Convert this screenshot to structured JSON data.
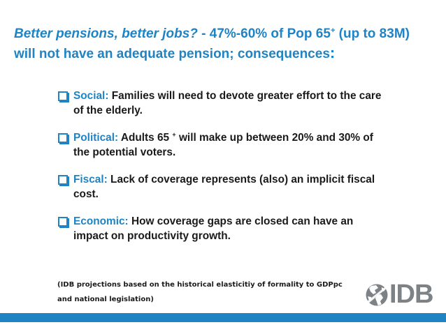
{
  "title": {
    "question": "Better pensions, better jobs?",
    "dash": " - ",
    "stat": "47%-60% of Pop 65",
    "stat_sup": "+",
    "stat_rest": " (up to 83M) will not have an adequate pension; consequences",
    "colon": ":"
  },
  "bullets": [
    {
      "category": "Social:",
      "text": " Families will need to devote greater effort to the care of the elderly."
    },
    {
      "category": "Political:",
      "text_before": " Adults 65 ",
      "text_sup": "+",
      "text_after": " will make up between 20% and 30% of the potential voters."
    },
    {
      "category": "Fiscal:",
      "text": " Lack of coverage represents (also) an implicit fiscal cost."
    },
    {
      "category": "Economic:",
      "text": " How coverage gaps are closed can have an impact on productivity growth."
    }
  ],
  "note": {
    "line1": "(IDB projections based on the historical elasticitiy of formality to GDPpc",
    "line2": "and national legislation)"
  },
  "logo": {
    "wordmark": "IDB",
    "icon": "globe-icon"
  },
  "colors": {
    "accent": "#1f83c4",
    "text": "#1a1a1a",
    "logo_gray": "#7d8286"
  }
}
